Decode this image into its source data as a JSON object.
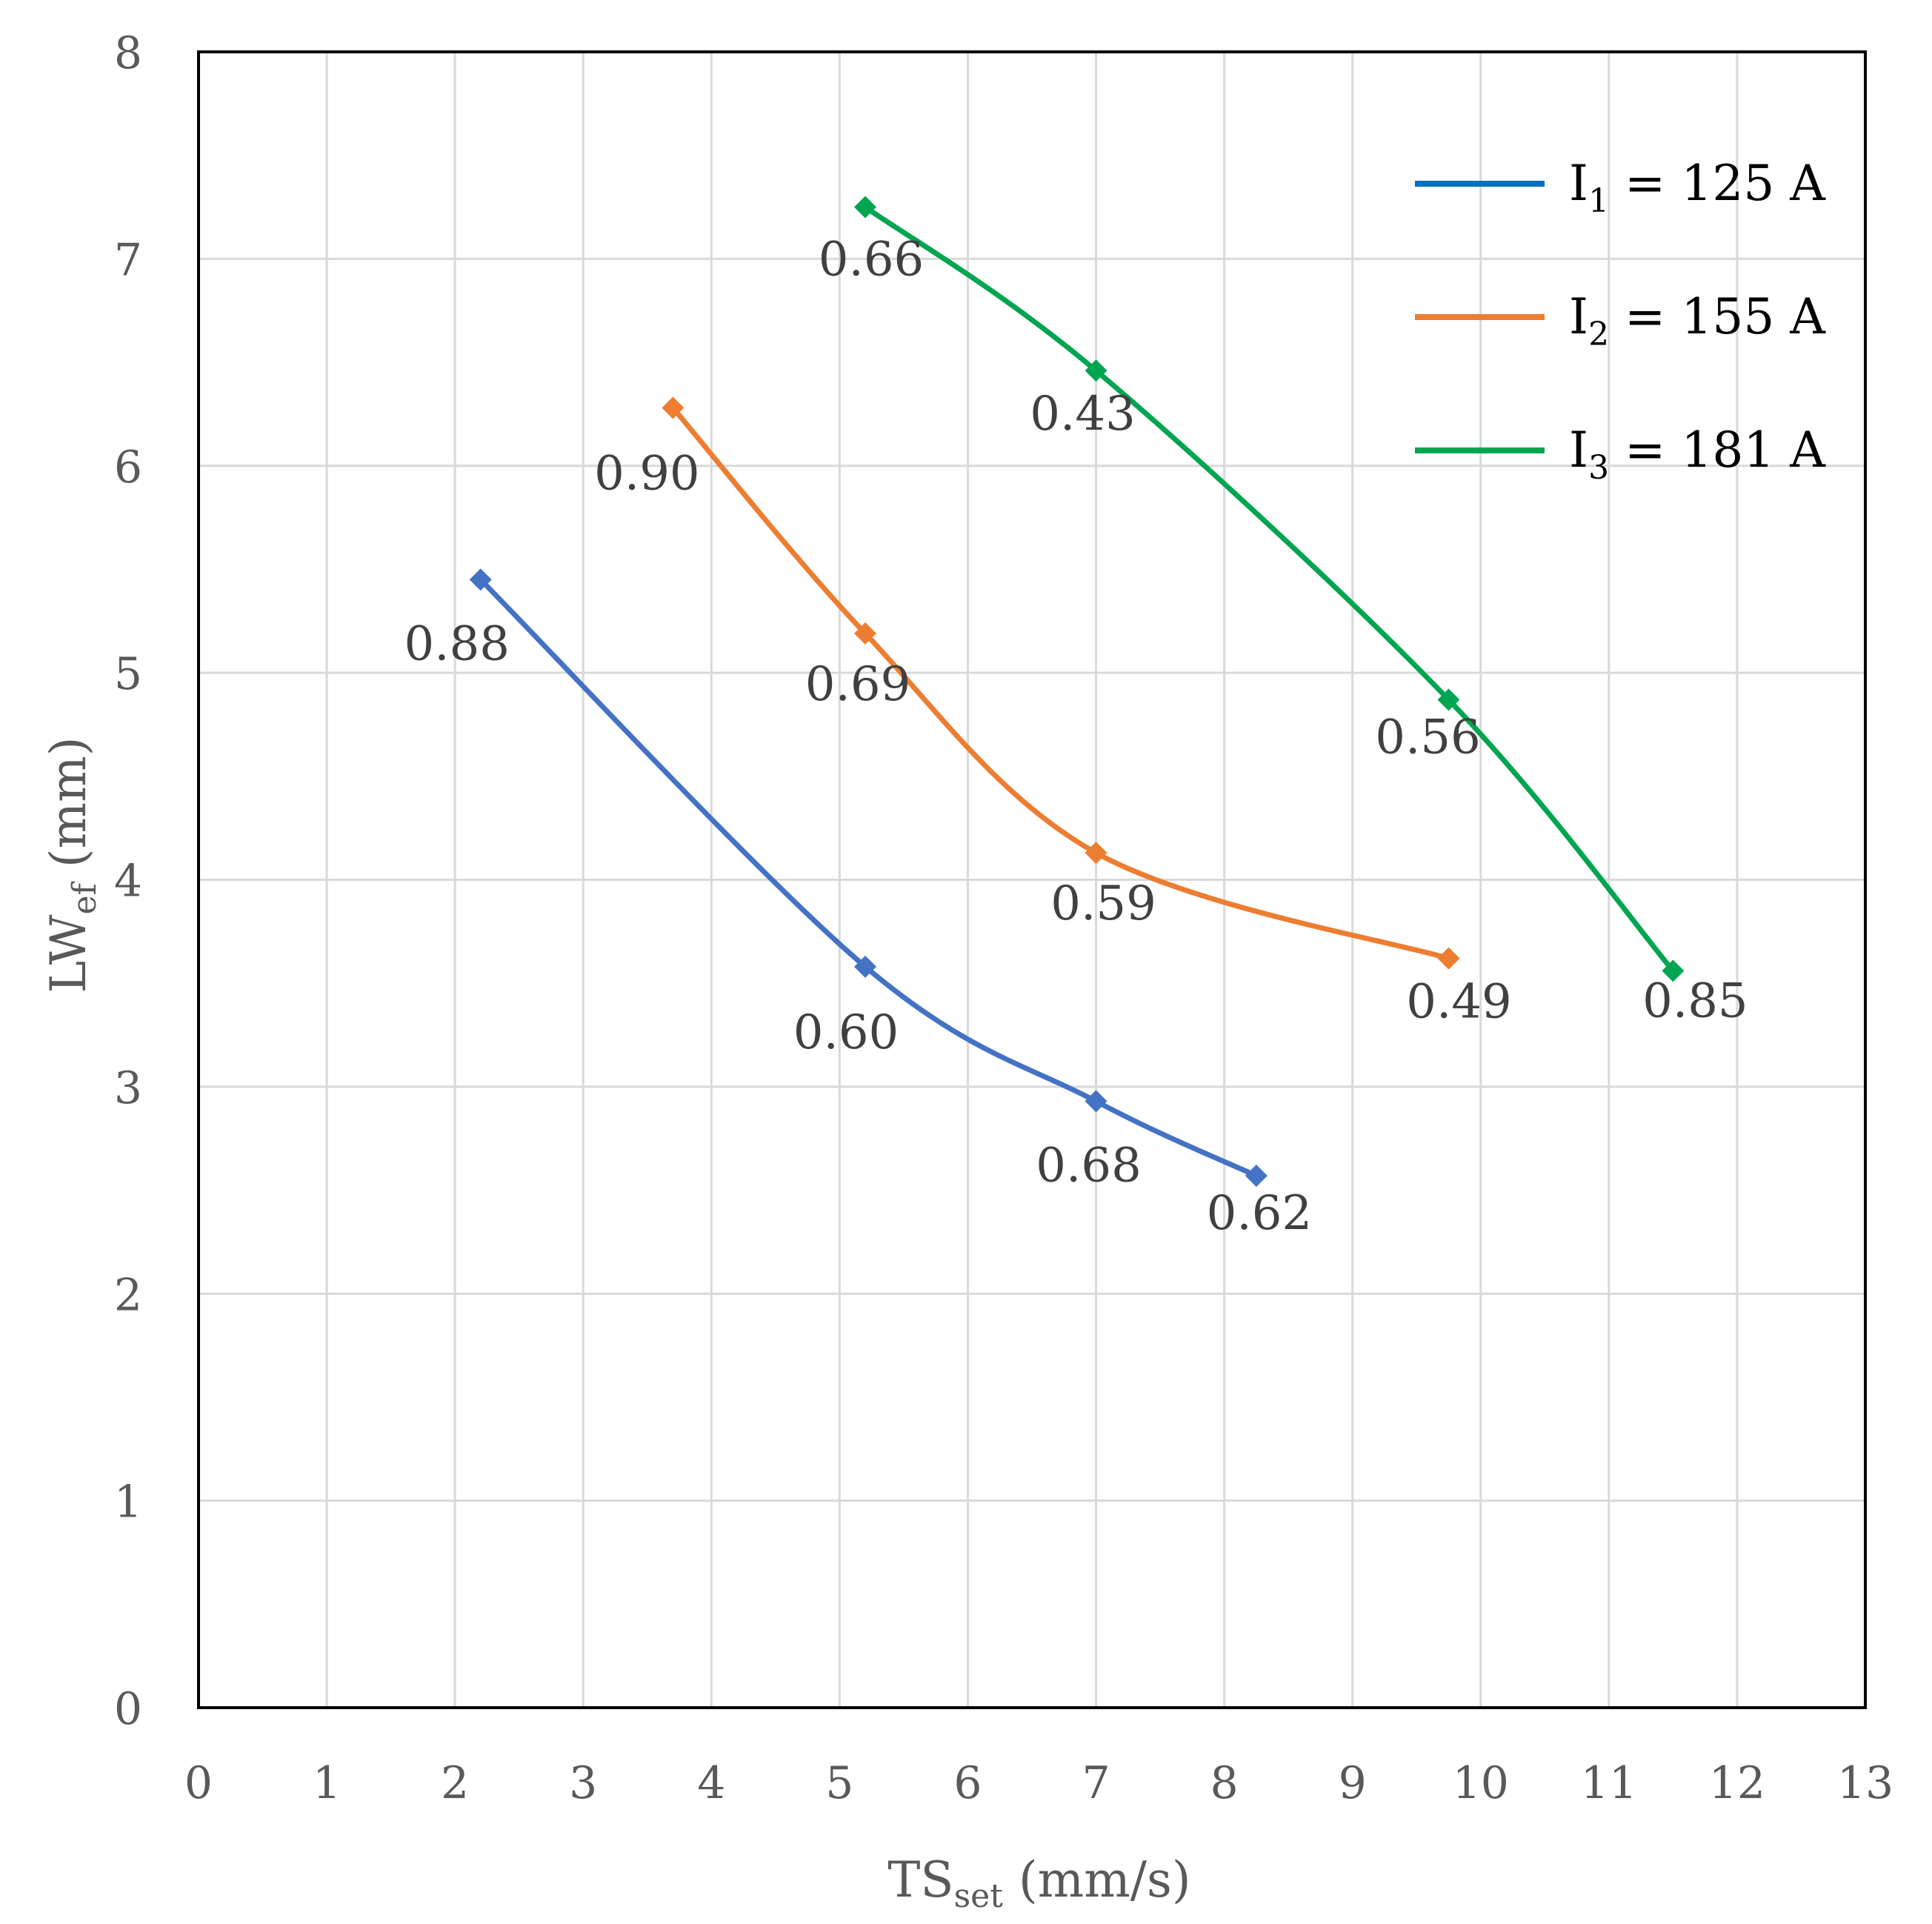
{
  "chart_data": {
    "type": "line",
    "xlabel": {
      "main": "TS",
      "sub": "set",
      "tail": " (mm/s)"
    },
    "ylabel": {
      "main": "LW",
      "sub": "ef",
      "tail": " (mm)"
    },
    "xlim": [
      0,
      13
    ],
    "ylim": [
      0,
      8
    ],
    "xticks": [
      "0",
      "1",
      "2",
      "3",
      "4",
      "5",
      "6",
      "7",
      "8",
      "9",
      "10",
      "11",
      "12",
      "13"
    ],
    "yticks": [
      "0",
      "1",
      "2",
      "3",
      "4",
      "5",
      "6",
      "7",
      "8"
    ],
    "grid": true,
    "legend_position": "top-right",
    "series": [
      {
        "name": "I1 = 125 A",
        "legend": {
          "main": "I",
          "sub": "1",
          "tail": " = 125 A"
        },
        "color": "#4472c4",
        "legend_color": "#0070c0",
        "points": [
          {
            "x": 2.2,
            "y": 5.45,
            "label": "0.88"
          },
          {
            "x": 5.2,
            "y": 3.58,
            "label": "0.60"
          },
          {
            "x": 7.0,
            "y": 2.93,
            "label": "0.68"
          },
          {
            "x": 8.25,
            "y": 2.57,
            "label": "0.62"
          }
        ]
      },
      {
        "name": "I2 = 155 A",
        "legend": {
          "main": "I",
          "sub": "2",
          "tail": " = 155 A"
        },
        "color": "#ed7d31",
        "legend_color": "#ed7d31",
        "points": [
          {
            "x": 3.7,
            "y": 6.28,
            "label": "0.90"
          },
          {
            "x": 5.2,
            "y": 5.19,
            "label": "0.69"
          },
          {
            "x": 7.0,
            "y": 4.13,
            "label": "0.59"
          },
          {
            "x": 9.75,
            "y": 3.62,
            "label": "0.49"
          }
        ]
      },
      {
        "name": "I3 = 181 A",
        "legend": {
          "main": "I",
          "sub": "3",
          "tail": " = 181 A"
        },
        "color": "#00a550",
        "legend_color": "#00a550",
        "points": [
          {
            "x": 5.2,
            "y": 7.25,
            "label": "0.66"
          },
          {
            "x": 7.0,
            "y": 6.46,
            "label": "0.43"
          },
          {
            "x": 9.75,
            "y": 4.87,
            "label": "0.56"
          },
          {
            "x": 11.5,
            "y": 3.56,
            "label": "0.85"
          }
        ]
      }
    ]
  }
}
